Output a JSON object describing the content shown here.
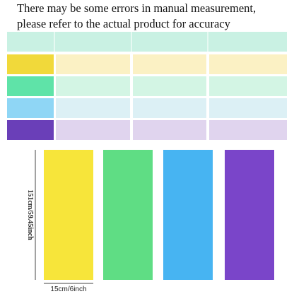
{
  "header": {
    "lines": [
      "There may be some errors in manual measurement,",
      "please refer to the actual product for accuracy"
    ]
  },
  "dimensions": {
    "length": "151cm/59.45inch",
    "width": "15cm/6inch"
  }
}
